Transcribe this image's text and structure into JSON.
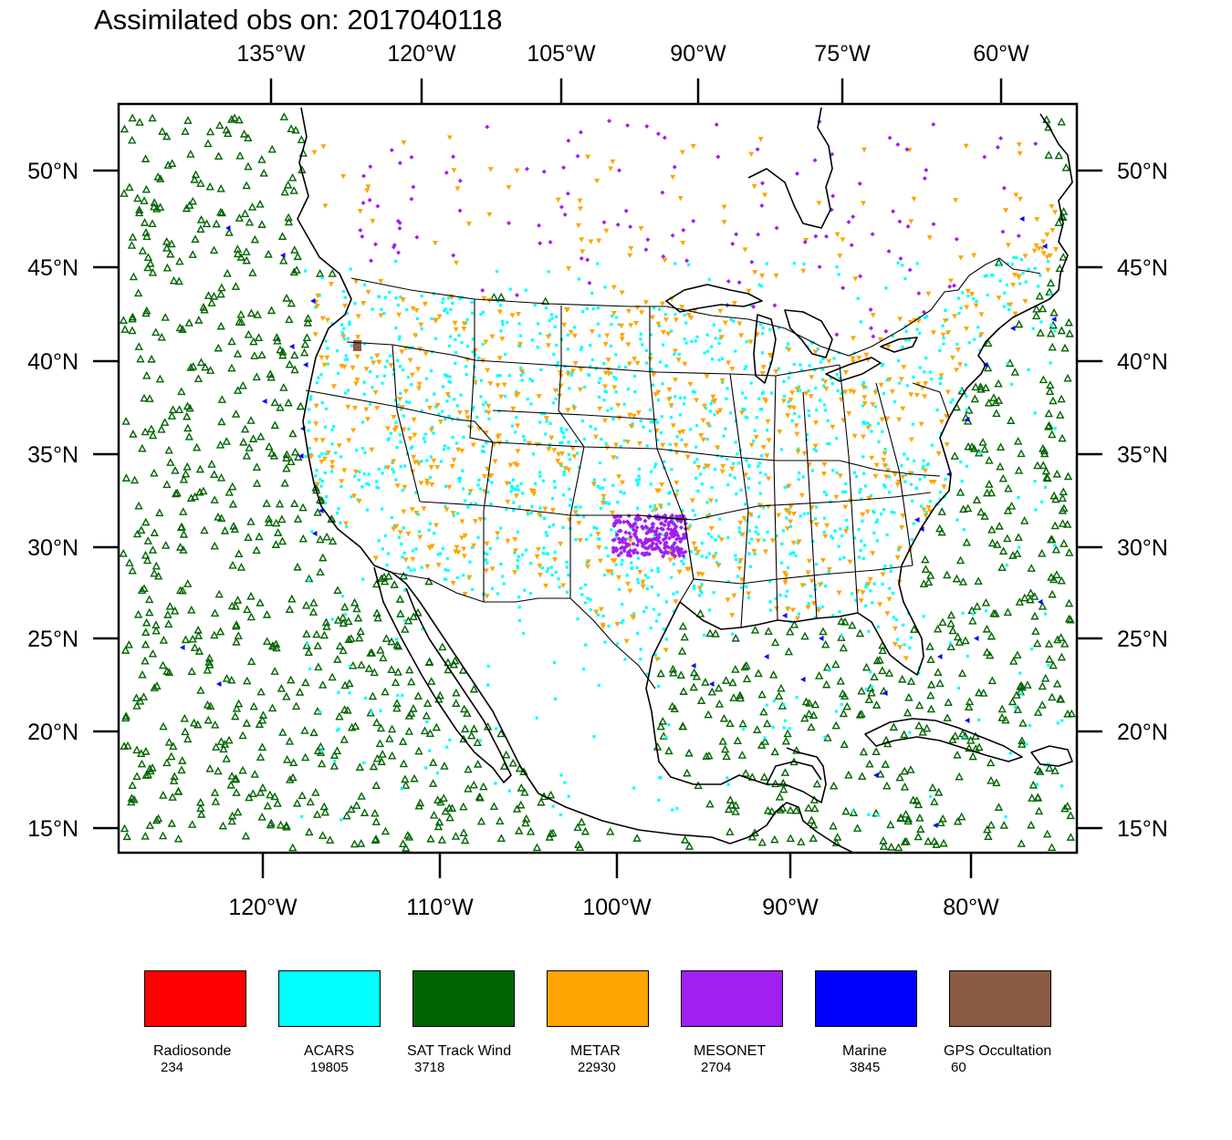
{
  "title": "Assimilated obs on: 2017040118",
  "map": {
    "top_lon_labels": [
      "135°W",
      "120°W",
      "105°W",
      "90°W",
      "75°W",
      "60°W"
    ],
    "bottom_lon_labels": [
      "120°W",
      "110°W",
      "100°W",
      "90°W",
      "80°W"
    ],
    "lat_labels": [
      "50°N",
      "45°N",
      "40°N",
      "35°N",
      "30°N",
      "25°N",
      "20°N",
      "15°N"
    ]
  },
  "legend": [
    {
      "label": "Radiosonde",
      "count": "234",
      "color": "#ff0000"
    },
    {
      "label": "ACARS",
      "count": "19805",
      "color": "#00ffff"
    },
    {
      "label": "SAT Track Wind",
      "count": "3718",
      "color": "#006400"
    },
    {
      "label": "METAR",
      "count": "22930",
      "color": "#ffa500"
    },
    {
      "label": "MESONET",
      "count": "2704",
      "color": "#a020f0"
    },
    {
      "label": "Marine",
      "count": "3845",
      "color": "#0000ff"
    },
    {
      "label": "GPS Occultation",
      "count": "60",
      "color": "#8b5a43"
    }
  ]
}
